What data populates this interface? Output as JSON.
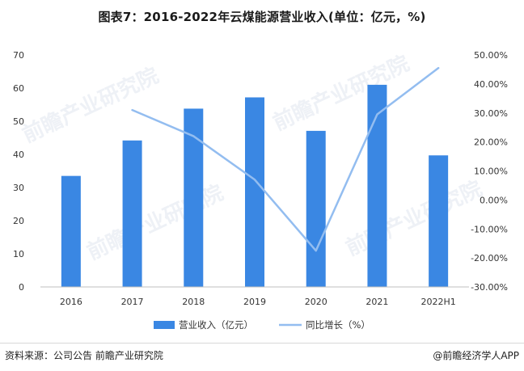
{
  "title": "图表7：2016-2022年云煤能源营业收入(单位：亿元，%)",
  "source": "资料来源：公司公告 前瞻产业研究院",
  "brand": "@前瞻经济学人APP",
  "watermark": "前瞻产业研究院",
  "colors": {
    "bar": "#3a87e3",
    "line": "#93bdf0"
  },
  "chart_data": {
    "type": "bar",
    "categories": [
      "2016",
      "2017",
      "2018",
      "2019",
      "2020",
      "2021",
      "2022H1"
    ],
    "series": [
      {
        "name": "营业收入（亿元）",
        "type": "bar",
        "axis": "left",
        "values": [
          33.5,
          44.2,
          53.8,
          57.2,
          47.1,
          61.0,
          39.7
        ]
      },
      {
        "name": "同比增长（%）",
        "type": "line",
        "axis": "right",
        "values": [
          null,
          31.0,
          22.0,
          7.0,
          -17.5,
          29.5,
          45.5
        ]
      }
    ],
    "y_left": {
      "min": 0,
      "max": 70,
      "ticks": [
        0,
        10,
        20,
        30,
        40,
        50,
        60,
        70
      ]
    },
    "y_right": {
      "min": -30,
      "max": 50,
      "ticks": [
        "-30.00%",
        "-20.00%",
        "-10.00%",
        "0.00%",
        "10.00%",
        "20.00%",
        "30.00%",
        "40.00%",
        "50.00%"
      ]
    },
    "legend_position": "bottom",
    "grid": false
  }
}
